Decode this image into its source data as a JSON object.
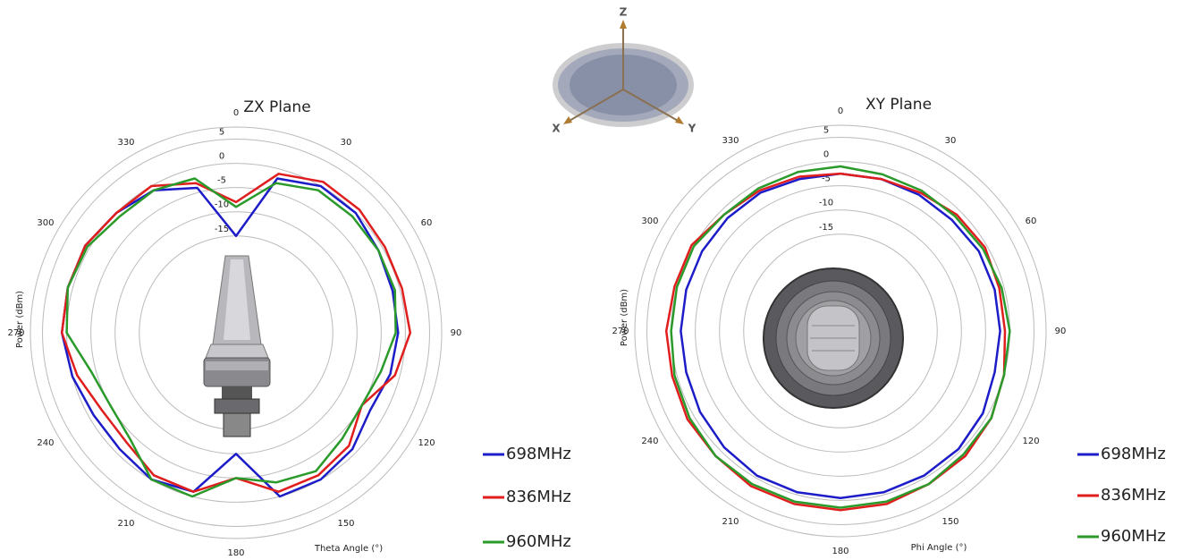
{
  "chart_data": [
    {
      "type": "polar",
      "title": "ZX Plane",
      "theta_label": "Theta Angle (°)",
      "r_label": "Power (dBm)",
      "theta": [
        0,
        15,
        30,
        45,
        60,
        75,
        90,
        105,
        120,
        135,
        150,
        165,
        180,
        195,
        210,
        225,
        240,
        255,
        270,
        285,
        300,
        315,
        330,
        345
      ],
      "thetaticks": [
        0,
        30,
        60,
        90,
        120,
        150,
        180,
        210,
        240,
        270,
        300,
        330
      ],
      "rlim": [
        -35,
        7.5
      ],
      "rticks": [
        -15,
        -10,
        -5,
        0,
        5
      ],
      "series": [
        {
          "name": "698MHz",
          "color": "#1c1cc8",
          "values": [
            -15,
            -2,
            0,
            0,
            -1,
            -1.5,
            -1.5,
            -2,
            -3,
            -1,
            0,
            0,
            -10,
            -1,
            0,
            -1,
            -1,
            0,
            1,
            1,
            1,
            0,
            -1,
            -4
          ]
        },
        {
          "name": "836MHz",
          "color": "#e01e1e",
          "values": [
            -8,
            -1,
            1,
            1,
            0.5,
            0.5,
            1,
            -1,
            -5,
            -2,
            -1,
            -1,
            -5,
            -1,
            -1,
            -3,
            -3,
            -1,
            1,
            1,
            1,
            0,
            0,
            -3
          ]
        },
        {
          "name": "960MHz",
          "color": "#2a9a2a",
          "values": [
            -9,
            -3,
            -1,
            -1,
            -1,
            -1,
            -2,
            -4,
            -5,
            -4,
            -2,
            -3,
            -5,
            0,
            0,
            -4,
            -5,
            -4,
            0,
            1,
            0.5,
            -1,
            -1,
            -2
          ]
        }
      ]
    },
    {
      "type": "polar",
      "title": "XY Plane",
      "theta_label": "Phi Angle (°)",
      "r_label": "Power (dBm)",
      "theta": [
        0,
        15,
        30,
        45,
        60,
        75,
        90,
        105,
        120,
        135,
        150,
        165,
        180,
        195,
        210,
        225,
        240,
        255,
        270,
        285,
        300,
        315,
        330,
        345
      ],
      "thetaticks": [
        0,
        30,
        60,
        90,
        120,
        150,
        180,
        210,
        240,
        270,
        300,
        330
      ],
      "rlim": [
        -35,
        7.5
      ],
      "rticks": [
        -15,
        -10,
        -5,
        0,
        5
      ],
      "series": [
        {
          "name": "698MHz",
          "color": "#1c1cc8",
          "values": [
            -2.5,
            -2.5,
            -2.5,
            -2.5,
            -2,
            -2,
            -2,
            -2,
            -1,
            -0.5,
            -0.5,
            -0.5,
            -0.5,
            -0.5,
            -0.5,
            -1,
            -1.5,
            -2,
            -2,
            -2,
            -2,
            -2,
            -2,
            -2.5
          ]
        },
        {
          "name": "836MHz",
          "color": "#e01e1e",
          "values": [
            -2.5,
            -2.5,
            -2,
            -1,
            -0.5,
            -1,
            -1,
            0,
            1,
            1.5,
            1.5,
            2,
            2,
            2,
            2,
            1.5,
            1.5,
            1,
            1,
            0.5,
            0.5,
            -1,
            -1.5,
            -2
          ]
        },
        {
          "name": "960MHz",
          "color": "#2a9a2a",
          "values": [
            -1,
            -1.5,
            -1.5,
            -1.5,
            -1,
            -0.5,
            0,
            0,
            1,
            1,
            1.5,
            1.5,
            1.5,
            1.5,
            1.5,
            1.5,
            1,
            0.5,
            0,
            0,
            0,
            -1,
            -1,
            -1
          ]
        }
      ]
    }
  ],
  "axes_icon": {
    "labels": [
      "Z",
      "X",
      "Y"
    ]
  }
}
